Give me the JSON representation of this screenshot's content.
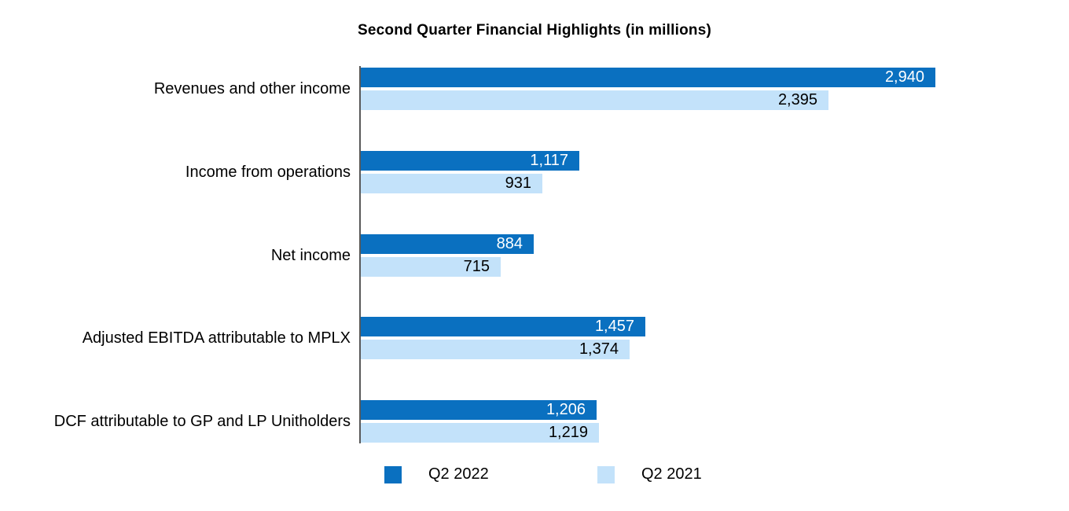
{
  "chart_data": {
    "type": "bar",
    "orientation": "horizontal",
    "title": "Second Quarter Financial Highlights (in millions)",
    "categories": [
      "Revenues and other income",
      "Income from operations",
      "Net income",
      "Adjusted EBITDA attributable to MPLX",
      "DCF attributable to GP and LP Unitholders"
    ],
    "series": [
      {
        "name": "Q2 2022",
        "color": "#0a70c0",
        "label_color": "#ffffff",
        "values": [
          2940,
          1117,
          884,
          1457,
          1206
        ],
        "labels": [
          "2,940",
          "1,117",
          "884",
          "1,457",
          "1,206"
        ]
      },
      {
        "name": "Q2 2021",
        "color": "#c3e2fa",
        "label_color": "#000000",
        "values": [
          2395,
          931,
          715,
          1374,
          1219
        ],
        "labels": [
          "2,395",
          "931",
          "715",
          "1,374",
          "1,219"
        ]
      }
    ],
    "xlim": [
      0,
      2940
    ],
    "value_labels_inside_bars": true,
    "grid": false,
    "legend_position": "bottom",
    "axis_line_color": "#595959",
    "background_color": "#ffffff"
  }
}
